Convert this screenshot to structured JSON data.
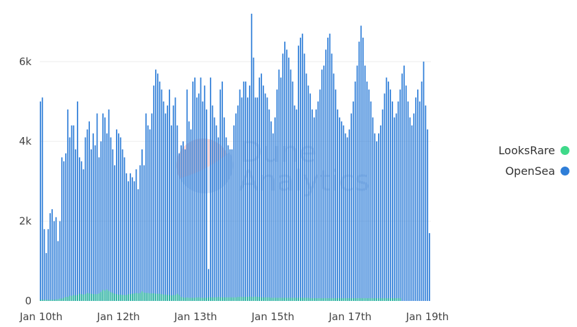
{
  "chart_data": {
    "type": "bar",
    "title": "",
    "xlabel": "",
    "ylabel": "",
    "ylim": [
      0,
      7200
    ],
    "y_ticks": [
      0,
      2000,
      4000,
      6000
    ],
    "y_tick_labels": [
      "0",
      "2k",
      "4k",
      "6k"
    ],
    "x_tick_labels": [
      "Jan 10th",
      "Jan 12th",
      "Jan 13th",
      "Jan 15th",
      "Jan 17th",
      "Jan 19th"
    ],
    "grid": true,
    "legend_position": "right",
    "series": [
      {
        "name": "LooksRare",
        "color": "#3fd98a",
        "values": [
          30,
          30,
          30,
          30,
          30,
          30,
          30,
          30,
          40,
          40,
          60,
          60,
          80,
          100,
          100,
          130,
          130,
          150,
          140,
          150,
          180,
          170,
          160,
          170,
          200,
          190,
          180,
          170,
          170,
          170,
          190,
          230,
          280,
          260,
          290,
          250,
          220,
          200,
          180,
          170,
          160,
          160,
          150,
          150,
          150,
          170,
          170,
          180,
          190,
          200,
          190,
          200,
          240,
          210,
          200,
          200,
          190,
          190,
          190,
          180,
          180,
          180,
          170,
          160,
          160,
          150,
          150,
          140,
          150,
          150,
          180,
          150,
          100,
          90,
          80,
          90,
          80,
          80,
          80,
          80,
          90,
          90,
          80,
          80,
          80,
          80,
          90,
          90,
          90,
          90,
          90,
          100,
          90,
          90,
          90,
          90,
          90,
          90,
          90,
          90,
          90,
          100,
          100,
          100,
          100,
          100,
          100,
          110,
          100,
          100,
          110,
          100,
          100,
          90,
          90,
          90,
          90,
          90,
          80,
          80,
          80,
          80,
          80,
          80,
          80,
          80,
          80,
          80,
          80,
          80,
          80,
          80,
          80,
          80,
          80,
          80,
          80,
          80,
          70,
          70,
          70,
          70,
          70,
          70,
          70,
          70,
          70,
          70,
          70,
          70,
          70,
          70,
          70,
          70,
          70,
          70,
          70,
          70,
          70,
          70,
          70,
          70,
          70,
          70,
          70,
          70,
          70,
          70,
          70,
          70,
          70,
          70,
          70,
          70,
          70,
          70,
          70,
          70,
          70,
          70,
          70,
          70,
          70,
          70,
          70
        ]
      },
      {
        "name": "OpenSea",
        "color": "#2f7ed8",
        "values": [
          5000,
          5100,
          1800,
          1200,
          1800,
          2200,
          2300,
          2000,
          2100,
          1500,
          2000,
          3600,
          3500,
          3700,
          4800,
          4100,
          4400,
          4400,
          3800,
          5000,
          3600,
          3500,
          3300,
          4100,
          4300,
          4500,
          3800,
          4200,
          3900,
          4700,
          3600,
          4000,
          4700,
          4600,
          4200,
          4800,
          4100,
          3800,
          3400,
          4300,
          4200,
          4100,
          3800,
          3600,
          3200,
          3000,
          3200,
          3100,
          3000,
          3300,
          2800,
          3400,
          3800,
          3400,
          4700,
          4400,
          4300,
          4700,
          5400,
          5800,
          5700,
          5500,
          5300,
          5000,
          4700,
          4900,
          5300,
          4400,
          4900,
          5100,
          4400,
          3700,
          3900,
          4000,
          3800,
          5300,
          4500,
          4300,
          5500,
          5600,
          5100,
          5200,
          5600,
          5000,
          5400,
          4800,
          800,
          5600,
          4900,
          4600,
          4400,
          4100,
          5300,
          5500,
          4600,
          4100,
          3900,
          3800,
          3800,
          4400,
          4700,
          4900,
          5300,
          5100,
          5500,
          5500,
          5100,
          5400,
          7200,
          6100,
          5100,
          5100,
          5600,
          5700,
          5400,
          5200,
          5100,
          4800,
          4500,
          4200,
          4600,
          5300,
          5800,
          5600,
          6200,
          6500,
          6300,
          6100,
          5800,
          5500,
          4900,
          4800,
          6400,
          6600,
          6700,
          6200,
          5700,
          5400,
          5200,
          4800,
          4600,
          4800,
          5000,
          5300,
          5800,
          5900,
          6300,
          6600,
          6700,
          6200,
          5700,
          5300,
          4800,
          4600,
          4500,
          4400,
          4200,
          4100,
          4300,
          4700,
          5000,
          5500,
          5900,
          6500,
          6900,
          6600,
          5900,
          5500,
          5300,
          5000,
          4600,
          4200,
          4000,
          4200,
          4400,
          4800,
          5200,
          5600,
          5500,
          5300,
          5000,
          4600,
          4700,
          5000,
          5300,
          5700,
          5900,
          5400,
          5000,
          4600,
          4400,
          4700,
          5100,
          5300,
          5000,
          5500,
          6000,
          4900,
          4300,
          1700
        ]
      }
    ]
  },
  "watermark": {
    "line1": "Dune",
    "line2": "Analytics"
  },
  "legend": [
    {
      "label": "LooksRare",
      "color": "#3fd98a"
    },
    {
      "label": "OpenSea",
      "color": "#2f7ed8"
    }
  ]
}
